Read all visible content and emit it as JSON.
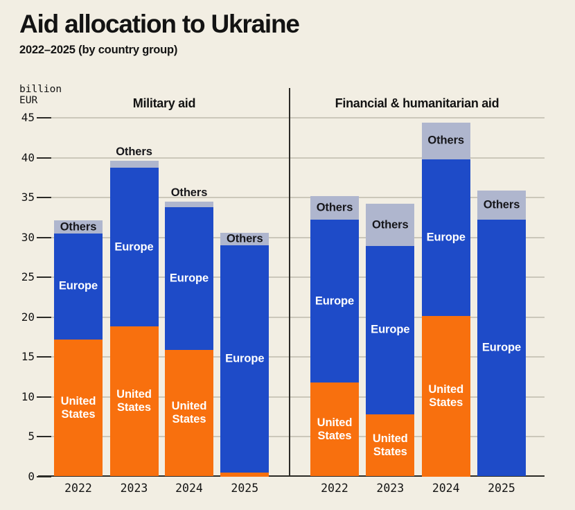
{
  "header": {
    "title": "Aid allocation to Ukraine",
    "subtitle": "2022–2025 (by country group)"
  },
  "chart_data": {
    "type": "bar",
    "variant": "stacked",
    "title": "Aid allocation to Ukraine",
    "subtitle": "2022–2025 (by country group)",
    "unit_label_line1": "billion",
    "unit_label_line2": "EUR",
    "categories": [
      "2022",
      "2023",
      "2024",
      "2025"
    ],
    "yticks": [
      0,
      5,
      10,
      15,
      20,
      25,
      30,
      35,
      40,
      45
    ],
    "ylim": [
      0,
      45
    ],
    "grid": true,
    "legend": "labels-inside-bars",
    "colors": {
      "background": "#F2EEE3",
      "united_states": "#F8700E",
      "europe": "#1E4BC8",
      "others": "#AFB6CE",
      "gridline": "#C6C2B5",
      "axis": "#2B2A26",
      "label_on_dark": "#FFFFFF",
      "label_on_light": "#16161A"
    },
    "series_defs": [
      {
        "key": "us",
        "label": "United States",
        "color": "#F8700E",
        "text_color": "#FFFFFF"
      },
      {
        "key": "europe",
        "label": "Europe",
        "color": "#1E4BC8",
        "text_color": "#FFFFFF"
      },
      {
        "key": "others",
        "label": "Others",
        "color": "#AFB6CE",
        "text_color": "#16161A"
      }
    ],
    "panels": [
      {
        "title": "Military aid",
        "bars": [
          {
            "year": "2022",
            "values": {
              "us": 17.2,
              "europe": 13.3,
              "others": 1.6
            },
            "total": 32.1,
            "labels": {
              "us": true,
              "europe": true,
              "others": "inside"
            }
          },
          {
            "year": "2023",
            "values": {
              "us": 18.8,
              "europe": 19.9,
              "others": 0.9
            },
            "total": 39.6,
            "labels": {
              "us": true,
              "europe": true,
              "others": "above"
            }
          },
          {
            "year": "2024",
            "values": {
              "us": 15.9,
              "europe": 17.9,
              "others": 0.7
            },
            "total": 34.5,
            "labels": {
              "us": true,
              "europe": true,
              "others": "above"
            }
          },
          {
            "year": "2025",
            "values": {
              "us": 0.5,
              "europe": 28.5,
              "others": 1.6
            },
            "total": 30.6,
            "labels": {
              "us": false,
              "europe": true,
              "others": "inside"
            }
          }
        ]
      },
      {
        "title": "Financial & humanitarian aid",
        "bars": [
          {
            "year": "2022",
            "values": {
              "us": 11.8,
              "europe": 20.4,
              "others": 3.0
            },
            "total": 35.2,
            "labels": {
              "us": true,
              "europe": true,
              "others": "inside"
            }
          },
          {
            "year": "2023",
            "values": {
              "us": 7.8,
              "europe": 21.1,
              "others": 5.3
            },
            "total": 34.2,
            "labels": {
              "us": true,
              "europe": true,
              "others": "inside"
            }
          },
          {
            "year": "2024",
            "values": {
              "us": 20.1,
              "europe": 19.7,
              "others": 4.6
            },
            "total": 44.4,
            "labels": {
              "us": true,
              "europe": true,
              "others": "inside"
            }
          },
          {
            "year": "2025",
            "values": {
              "us": 0,
              "europe": 32.2,
              "others": 3.7
            },
            "total": 35.9,
            "labels": {
              "us": false,
              "europe": true,
              "others": "inside"
            }
          }
        ]
      }
    ]
  }
}
